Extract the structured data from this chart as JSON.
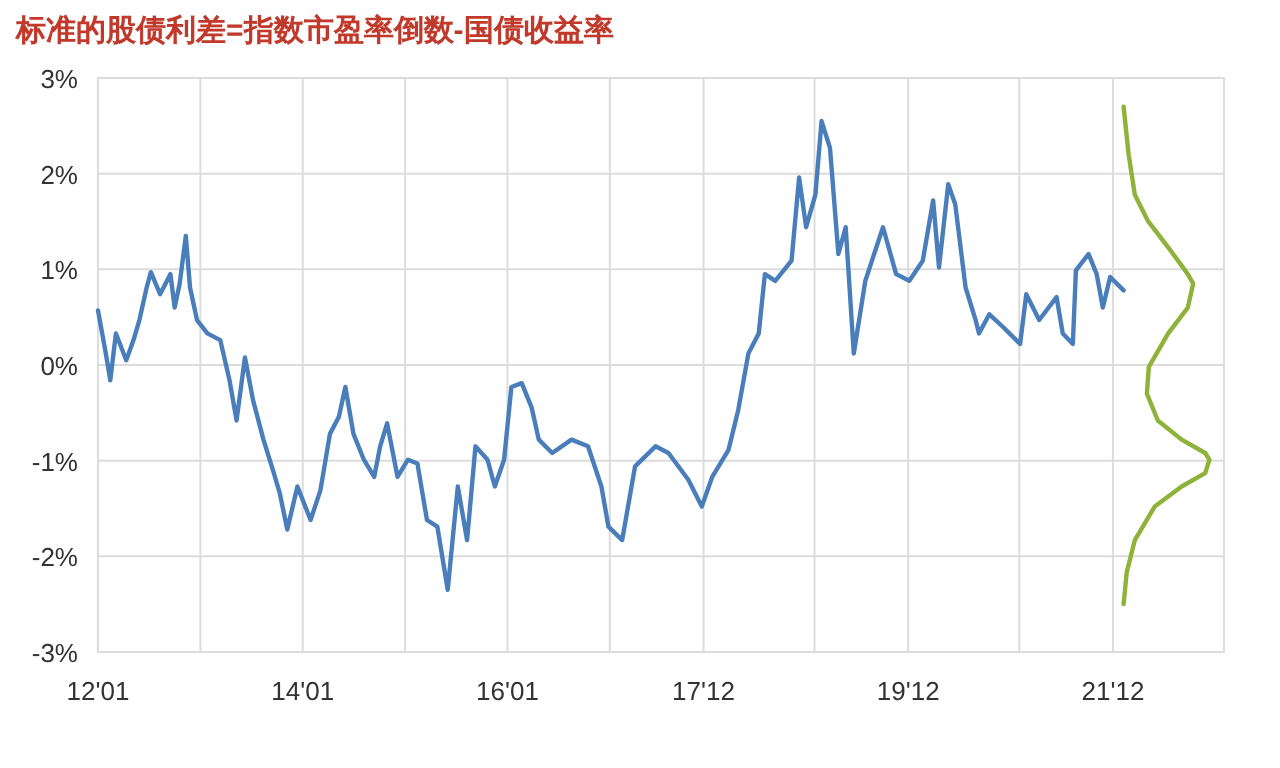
{
  "chart_data": {
    "type": "line",
    "title": "标准的股债利差=指数市盈率倒数-国债收益率",
    "xlim": [
      "2012-01",
      "2023-01"
    ],
    "xticks": [
      {
        "value": "2012-01",
        "label": "12'01"
      },
      {
        "value": "2013-01",
        "label": null
      },
      {
        "value": "2014-01",
        "label": "14'01"
      },
      {
        "value": "2015-01",
        "label": null
      },
      {
        "value": "2016-01",
        "label": "16'01"
      },
      {
        "value": "2017-01",
        "label": null
      },
      {
        "value": "2017-12",
        "label": "17'12"
      },
      {
        "value": "2019-01",
        "label": null
      },
      {
        "value": "2019-12",
        "label": "19'12"
      },
      {
        "value": "2021-01",
        "label": null
      },
      {
        "value": "2021-12",
        "label": "21'12"
      }
    ],
    "ylim": [
      -3,
      3
    ],
    "yticks": [
      {
        "value": -3,
        "label": "-3%"
      },
      {
        "value": -2,
        "label": "-2%"
      },
      {
        "value": -1,
        "label": "-1%"
      },
      {
        "value": 0,
        "label": "0%"
      },
      {
        "value": 1,
        "label": "1%"
      },
      {
        "value": 2,
        "label": "2%"
      },
      {
        "value": 3,
        "label": "3%"
      }
    ],
    "grid": true,
    "line_style": "solid",
    "series": [
      {
        "color": "#4a7ebb",
        "x": [
          "2012-01-01",
          "2012-01-29",
          "2012-02-14",
          "2012-03-05",
          "2012-04-11",
          "2012-05-07",
          "2012-05-28",
          "2012-06-23",
          "2012-07-08",
          "2012-08-10",
          "2012-09-16",
          "2012-10-01",
          "2012-10-19",
          "2012-11-10",
          "2012-11-25",
          "2012-12-20",
          "2013-01-26",
          "2013-03-13",
          "2013-04-15",
          "2013-05-10",
          "2013-06-09",
          "2013-07-08",
          "2013-08-14",
          "2013-09-20",
          "2013-10-11",
          "2013-11-07",
          "2013-12-13",
          "2014-01-29",
          "2014-03-05",
          "2014-04-08",
          "2014-05-10",
          "2014-06-02",
          "2014-07-01",
          "2014-08-07",
          "2014-09-13",
          "2014-10-04",
          "2014-10-29",
          "2014-12-05",
          "2015-01-11",
          "2015-02-14",
          "2015-03-20",
          "2015-04-26",
          "2015-06-02",
          "2015-07-08",
          "2015-08-10",
          "2015-09-09",
          "2015-10-22",
          "2015-11-17",
          "2015-12-20",
          "2016-01-15",
          "2016-02-21",
          "2016-03-27",
          "2016-04-22",
          "2016-06-09",
          "2016-08-17",
          "2016-10-15",
          "2016-12-02",
          "2016-12-27",
          "2017-02-14",
          "2017-04-01",
          "2017-06-13",
          "2017-07-29",
          "2017-10-08",
          "2017-11-25",
          "2018-01-01",
          "2018-02-28",
          "2018-04-04",
          "2018-05-10",
          "2018-06-16",
          "2018-07-08",
          "2018-08-14",
          "2018-10-11",
          "2018-11-07",
          "2018-12-02",
          "2019-01-04",
          "2019-01-26",
          "2019-02-25",
          "2019-03-27",
          "2019-04-22",
          "2019-05-21",
          "2019-07-01",
          "2019-09-02",
          "2019-10-19",
          "2019-12-05",
          "2020-01-22",
          "2020-02-28",
          "2020-03-20",
          "2020-04-22",
          "2020-05-17",
          "2020-06-23",
          "2020-07-29",
          "2020-08-10",
          "2020-09-16",
          "2020-11-03",
          "2021-01-04",
          "2021-01-26",
          "2021-03-13",
          "2021-05-14",
          "2021-06-05",
          "2021-07-11",
          "2021-07-22",
          "2021-09-05",
          "2021-10-04",
          "2021-10-26",
          "2021-11-21",
          "2022-01-08"
        ],
        "values": [
          0.57,
          0.12,
          -0.16,
          0.33,
          0.05,
          0.26,
          0.47,
          0.81,
          0.97,
          0.74,
          0.95,
          0.6,
          0.85,
          1.35,
          0.81,
          0.47,
          0.33,
          0.26,
          -0.16,
          -0.58,
          0.08,
          -0.37,
          -0.78,
          -1.13,
          -1.34,
          -1.72,
          -1.27,
          -1.62,
          -1.31,
          -0.72,
          -0.54,
          -0.23,
          -0.72,
          -0.99,
          -1.17,
          -0.85,
          -0.61,
          -1.17,
          -0.99,
          -1.03,
          -1.62,
          -1.69,
          -2.35,
          -1.27,
          -1.83,
          -0.85,
          -0.99,
          -1.27,
          -0.99,
          -0.23,
          -0.19,
          -0.44,
          -0.78,
          -0.92,
          -0.78,
          -0.85,
          -1.27,
          -1.69,
          -1.83,
          -1.06,
          -0.85,
          -0.92,
          -1.2,
          -1.48,
          -1.17,
          -0.89,
          -0.47,
          0.12,
          0.33,
          0.95,
          0.88,
          1.09,
          1.96,
          1.44,
          1.78,
          2.55,
          2.27,
          1.16,
          1.44,
          0.12,
          0.88,
          1.44,
          0.95,
          0.88,
          1.09,
          1.72,
          1.02,
          1.89,
          1.68,
          0.81,
          0.47,
          0.33,
          0.53,
          0.4,
          0.22,
          0.74,
          0.47,
          0.71,
          0.33,
          0.22,
          0.99,
          1.16,
          0.95,
          0.6,
          0.92,
          0.78
        ]
      },
      {
        "type": "line",
        "color": "#8db33a",
        "x": [
          "2022-01-08",
          "2022-01-26",
          "2022-02-17",
          "2022-04-04",
          "2022-06-16",
          "2022-08-25",
          "2022-09-13",
          "2022-08-25",
          "2022-06-16",
          "2022-04-08",
          "2022-04-01",
          "2022-05-10",
          "2022-08-03",
          "2022-10-26",
          "2022-11-10",
          "2022-10-26",
          "2022-08-03",
          "2022-04-29",
          "2022-02-17",
          "2022-01-19",
          "2022-01-08"
        ],
        "values": [
          2.7,
          2.2,
          1.78,
          1.51,
          1.23,
          0.95,
          0.85,
          0.6,
          0.33,
          -0.02,
          -0.3,
          -0.58,
          -0.78,
          -0.92,
          -0.99,
          -1.13,
          -1.27,
          -1.48,
          -1.83,
          -2.17,
          -2.5
        ]
      }
    ]
  }
}
